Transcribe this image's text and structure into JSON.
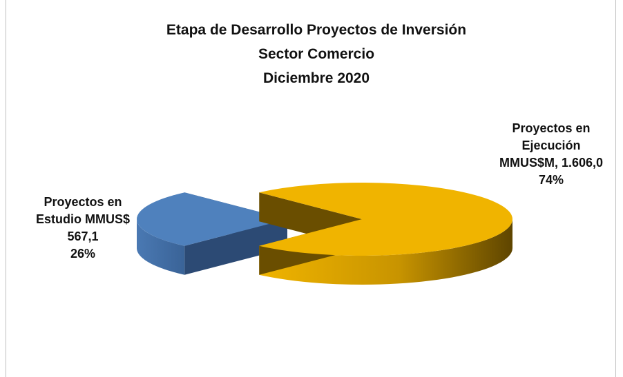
{
  "chart_data": {
    "type": "pie",
    "style": "3d-exploded",
    "title": "Etapa de Desarrollo Proyectos de Inversión",
    "subtitle": [
      "Sector Comercio",
      "Diciembre 2020"
    ],
    "categories": [
      "Proyectos en Estudio MMUS$",
      "Proyectos en Ejecución MMUS$M,"
    ],
    "values": [
      567.1,
      1606.0
    ],
    "value_labels": [
      "567,1",
      "1.606,0"
    ],
    "percentages": [
      26,
      74
    ],
    "percentage_labels": [
      "26%",
      "74%"
    ],
    "colors": [
      "#4f81bd",
      "#f0b400"
    ]
  }
}
